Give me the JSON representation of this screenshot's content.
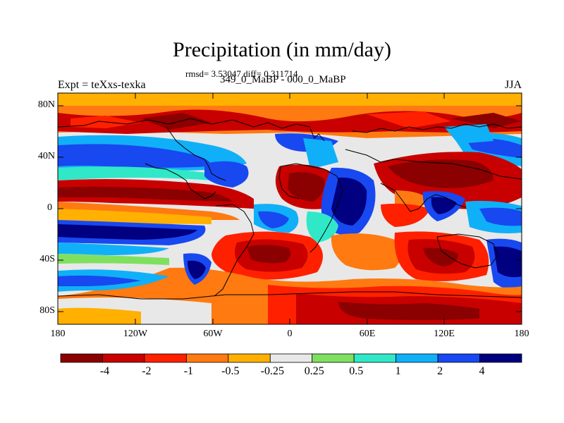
{
  "figure": {
    "title": "Precipitation (in mm/day)",
    "stats": "rmsd= 3.53047 diff= 0.311714",
    "subtitle": "349_0_MaBP - 000_0_MaBP",
    "experiment": "Expt = teXxs-texka",
    "season": "JJA"
  },
  "axes": {
    "lat_labels": [
      "80N",
      "40N",
      "0",
      "40S",
      "80S"
    ],
    "lon_labels": [
      "180",
      "120W",
      "60W",
      "0",
      "60E",
      "120E",
      "180"
    ]
  },
  "colorbar": {
    "labels": [
      "-4",
      "-2",
      "-1",
      "-0.5",
      "-0.25",
      "0.25",
      "0.5",
      "1",
      "2",
      "4"
    ],
    "colors": [
      "#8b0000",
      "#c80000",
      "#ff2000",
      "#ff7a10",
      "#ffb000",
      "#e8e8e8",
      "#7fe060",
      "#30e8c8",
      "#10b0f8",
      "#1848f0",
      "#000080"
    ]
  }
}
